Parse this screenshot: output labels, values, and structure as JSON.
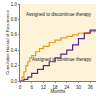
{
  "chart_data": {
    "type": "line",
    "xlabel": "Months",
    "ylabel": "Cumulative Hazard of Recurrence",
    "annotations": [
      "Assigned to discontinue therapy",
      "Assigned to continue therapy"
    ],
    "line_style": "step",
    "grid": false,
    "xlim": [
      0,
      39
    ],
    "xticks": [
      0,
      6,
      12,
      18,
      24,
      30,
      36
    ],
    "ylim": [
      0,
      1
    ],
    "yticks": [
      {
        "value": 0,
        "label": "0.0"
      },
      {
        "value": 0.2,
        "label": "0.2"
      },
      {
        "value": 0.4,
        "label": "0.4"
      },
      {
        "value": 0.6,
        "label": "0.6"
      },
      {
        "value": 0.8,
        "label": "0.8"
      },
      {
        "value": 1,
        "label": "1.0"
      }
    ],
    "series": [
      {
        "name": "Assigned to discontinue therapy",
        "color": "#e89a1c",
        "x": [
          0,
          1,
          2,
          3,
          4,
          5,
          6,
          8,
          10,
          12,
          15,
          18,
          21,
          24,
          27,
          30,
          33,
          36,
          39
        ],
        "values": [
          0,
          0.05,
          0.12,
          0.2,
          0.25,
          0.3,
          0.33,
          0.38,
          0.42,
          0.45,
          0.5,
          0.53,
          0.56,
          0.58,
          0.6,
          0.62,
          0.63,
          0.64,
          0.64
        ]
      },
      {
        "name": "Assigned to continue therapy",
        "color": "#5b2a86",
        "x": [
          0,
          2,
          4,
          6,
          9,
          12,
          15,
          18,
          21,
          24,
          27,
          30,
          33,
          36,
          39
        ],
        "values": [
          0,
          0.02,
          0.05,
          0.1,
          0.15,
          0.2,
          0.25,
          0.3,
          0.35,
          0.4,
          0.47,
          0.55,
          0.62,
          0.66,
          0.66
        ]
      }
    ]
  }
}
